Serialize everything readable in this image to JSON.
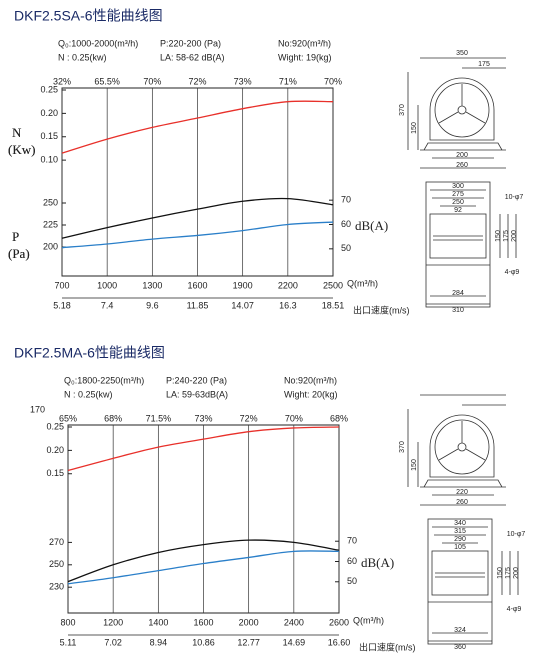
{
  "chart_data": [
    {
      "type": "line",
      "title": "DKF2.5SA-6性能曲线图",
      "specs": [
        "Q₀:1000-2000(m³/h)",
        "P:220-200 (Pa)",
        "No:920(m³/h)",
        "N : 0.25(kw)",
        "LA: 58-62 dB(A)",
        "Wight: 19(kg)"
      ],
      "categories": [
        "700",
        "1000",
        "1300",
        "1600",
        "1900",
        "2200",
        "2500"
      ],
      "x_label": "Q(m³/h)",
      "speed_labels": [
        "5.18",
        "7.4",
        "9.6",
        "11.85",
        "14.07",
        "16.3",
        "18.51"
      ],
      "speed_label": "出口速度(m/s)",
      "efficiency_labels": [
        "32%",
        "65.5%",
        "70%",
        "72%",
        "73%",
        "71%",
        "70%"
      ],
      "y_label": [
        "P",
        "(Pa)"
      ],
      "y2_label": "dB(A)",
      "y3_label": [
        "N",
        "(Kw)"
      ],
      "ylim": [
        190,
        260
      ],
      "yticks": [
        200,
        225,
        250
      ],
      "y2lim": [
        45,
        75
      ],
      "y2ticks": [
        50,
        60,
        70
      ],
      "y3lim": [
        0.05,
        0.25
      ],
      "y3ticks": [
        {
          "value": 0.1,
          "label": "0.10"
        },
        0.15,
        {
          "value": 0.2,
          "label": "0.20"
        },
        0.25
      ],
      "grid": true,
      "series": [
        {
          "axis": "y3",
          "color": "#e8302a",
          "values": [
            0.115,
            0.145,
            0.17,
            0.19,
            0.21,
            0.225,
            0.225
          ]
        },
        {
          "axis": "y",
          "color": "#111111",
          "values": [
            210,
            222,
            233,
            243,
            252,
            255,
            248
          ]
        },
        {
          "axis": "y2",
          "color": "#2a7fc9",
          "values": [
            50.5,
            52,
            54,
            55.5,
            57.5,
            60,
            61
          ]
        }
      ]
    },
    {
      "type": "line",
      "title": "DKF2.5MA-6性能曲线图",
      "specs": [
        "Q₀:1800-2250(m³/h)",
        "P:240-220 (Pa)",
        "No:920(m³/h)",
        "N : 0.25(kw)",
        "LA: 59-63dB(A)",
        "Wight: 20(kg)"
      ],
      "note": "170",
      "categories": [
        "800",
        "1200",
        "1400",
        "1600",
        "2000",
        "2400",
        "2600"
      ],
      "x_label": "Q(m³/h)",
      "speed_labels": [
        "5.11",
        "7.02",
        "8.94",
        "10.86",
        "12.77",
        "14.69",
        "16.60"
      ],
      "speed_label": "出口速度(m/s)",
      "efficiency_labels": [
        "65%",
        "68%",
        "71.5%",
        "73%",
        "72%",
        "70%",
        "68%"
      ],
      "y_label": [
        "P",
        "(Pa)"
      ],
      "y2_label": "dB(A)",
      "y3_label": [
        "N",
        "(Kw)"
      ],
      "ylim": [
        225,
        280
      ],
      "yticks": [
        230,
        250,
        270
      ],
      "y2lim": [
        42,
        78
      ],
      "y2ticks": [
        50,
        60,
        70
      ],
      "y3lim": [
        0.05,
        0.25
      ],
      "y3ticks": [
        0.15,
        {
          "value": 0.2,
          "label": "0.20"
        },
        0.25
      ],
      "grid": true,
      "series": [
        {
          "axis": "y3",
          "color": "#e8302a",
          "values": [
            0.157,
            0.183,
            0.207,
            0.224,
            0.24,
            0.248,
            0.25
          ]
        },
        {
          "axis": "y",
          "color": "#111111",
          "values": [
            235,
            250,
            261,
            268,
            272,
            270,
            263
          ]
        },
        {
          "axis": "y2",
          "color": "#2a7fc9",
          "values": [
            49,
            52,
            55.5,
            59,
            62,
            65,
            65
          ]
        }
      ]
    }
  ],
  "drawings": [
    {
      "front": [
        "350",
        "175",
        "370",
        "150",
        "200",
        "260"
      ],
      "side": [
        "300",
        "275",
        "250",
        "92",
        "10-φ7",
        "150",
        "175",
        "200",
        "4-φ9",
        "284",
        "310"
      ]
    },
    {
      "front": [
        "370",
        "150",
        "220",
        "260"
      ],
      "side": [
        "340",
        "315",
        "290",
        "105",
        "10-φ7",
        "150",
        "175",
        "200",
        "4-φ9",
        "324",
        "360"
      ]
    }
  ]
}
